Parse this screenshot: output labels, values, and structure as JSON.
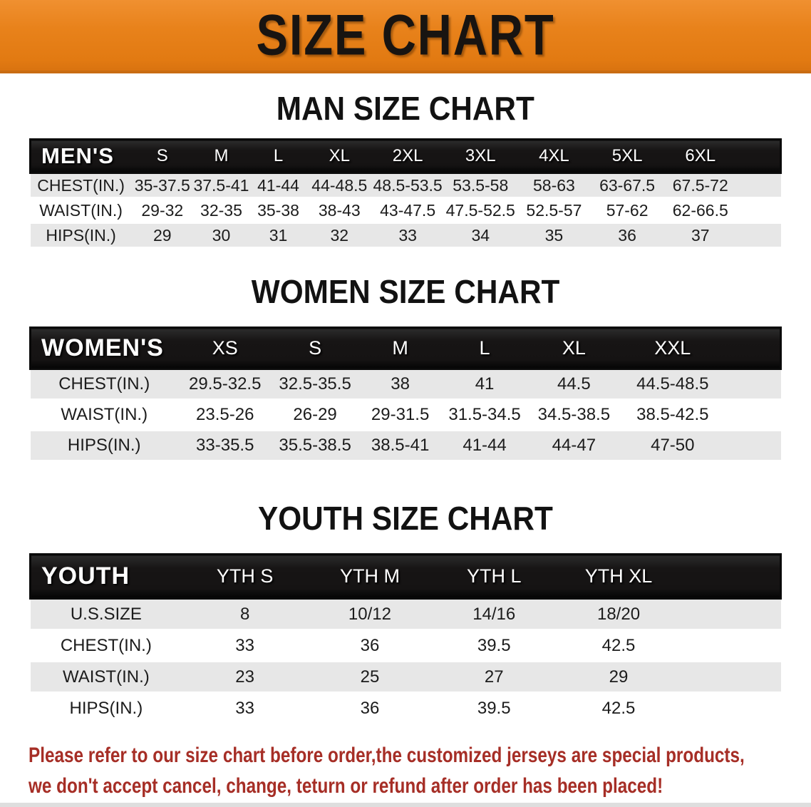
{
  "banner": {
    "title": "SIZE CHART"
  },
  "sections": [
    {
      "heading": "MAN SIZE CHART",
      "table": {
        "header": [
          "MEN'S",
          "S",
          "M",
          "L",
          "XL",
          "2XL",
          "3XL",
          "4XL",
          "5XL",
          "6XL"
        ],
        "rows": [
          {
            "label": "CHEST(IN.)",
            "values": [
              "35-37.5",
              "37.5-41",
              "41-44",
              "44-48.5",
              "48.5-53.5",
              "53.5-58",
              "58-63",
              "63-67.5",
              "67.5-72"
            ]
          },
          {
            "label": "WAIST(IN.)",
            "values": [
              "29-32",
              "32-35",
              "35-38",
              "38-43",
              "43-47.5",
              "47.5-52.5",
              "52.5-57",
              "57-62",
              "62-66.5"
            ]
          },
          {
            "label": "HIPS(IN.)",
            "values": [
              "29",
              "30",
              "31",
              "32",
              "33",
              "34",
              "35",
              "36",
              "37"
            ]
          }
        ]
      }
    },
    {
      "heading": "WOMEN SIZE CHART",
      "table": {
        "header": [
          "WOMEN'S",
          "XS",
          "S",
          "M",
          "L",
          "XL",
          "XXL"
        ],
        "rows": [
          {
            "label": "CHEST(IN.)",
            "values": [
              "29.5-32.5",
              "32.5-35.5",
              "38",
              "41",
              "44.5",
              "44.5-48.5"
            ]
          },
          {
            "label": "WAIST(IN.)",
            "values": [
              "23.5-26",
              "26-29",
              "29-31.5",
              "31.5-34.5",
              "34.5-38.5",
              "38.5-42.5"
            ]
          },
          {
            "label": "HIPS(IN.)",
            "values": [
              "33-35.5",
              "35.5-38.5",
              "38.5-41",
              "41-44",
              "44-47",
              "47-50"
            ]
          }
        ]
      }
    },
    {
      "heading": "YOUTH SIZE CHART",
      "table": {
        "header": [
          "YOUTH",
          "YTH S",
          "YTH M",
          "YTH L",
          "YTH XL"
        ],
        "rows": [
          {
            "label": "U.S.SIZE",
            "values": [
              "8",
              "10/12",
              "14/16",
              "18/20"
            ]
          },
          {
            "label": "CHEST(IN.)",
            "values": [
              "33",
              "36",
              "39.5",
              "42.5"
            ]
          },
          {
            "label": "WAIST(IN.)",
            "values": [
              "23",
              "25",
              "27",
              "29"
            ]
          },
          {
            "label": "HIPS(IN.)",
            "values": [
              "33",
              "36",
              "39.5",
              "42.5"
            ]
          }
        ]
      }
    }
  ],
  "notice": {
    "line1": "Please refer to our size chart before order,the customized jerseys are special products,",
    "line2": "we don't accept cancel, change, teturn or refund after order has been placed!"
  },
  "colors": {
    "banner_orange": "#e8821b",
    "header_black": "#151313",
    "row_gray": "#e7e7e7",
    "notice_red": "#a62e26"
  }
}
